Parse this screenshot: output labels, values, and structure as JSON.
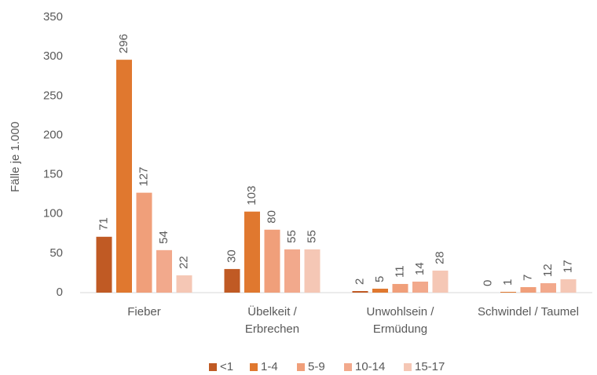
{
  "chart_data": {
    "type": "bar",
    "categories": [
      "Fieber",
      "Übelkeit /\nErbrechen",
      "Unwohlsein /\nErmüdung",
      "Schwindel / Taumel"
    ],
    "series": [
      {
        "name": "<1",
        "color": "#c05a24",
        "values": [
          71,
          30,
          2,
          0
        ]
      },
      {
        "name": "1-4",
        "color": "#e0782f",
        "values": [
          296,
          103,
          5,
          1
        ]
      },
      {
        "name": "5-9",
        "color": "#f09f7a",
        "values": [
          127,
          80,
          11,
          7
        ]
      },
      {
        "name": "10-14",
        "color": "#f2a98c",
        "values": [
          54,
          55,
          14,
          12
        ]
      },
      {
        "name": "15-17",
        "color": "#f5c7b5",
        "values": [
          22,
          55,
          28,
          17
        ]
      }
    ],
    "y_label": "Fälle je 1.000",
    "ylim": [
      0,
      350
    ],
    "yticks": [
      0,
      50,
      100,
      150,
      200,
      250,
      300,
      350
    ],
    "grid": false,
    "legend": "bottom"
  }
}
